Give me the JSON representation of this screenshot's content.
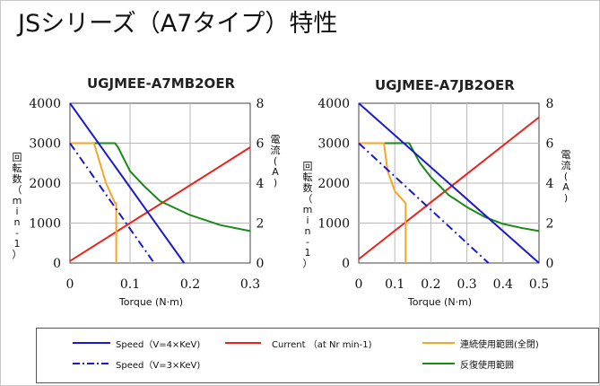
{
  "page": {
    "title": "JSシリーズ（A7タイプ）特性"
  },
  "chart_data": [
    {
      "type": "line",
      "title": "UGJMEE-A7MB2OER",
      "xlabel": "Torque (N·m)",
      "ylabel_left": [
        "回",
        "転",
        "数",
        "（",
        "m",
        "i",
        "n",
        "-",
        "1",
        "）"
      ],
      "ylabel_right": [
        "電",
        "流",
        "(",
        "A",
        ")"
      ],
      "xlim": [
        0,
        0.3
      ],
      "ylim_left": [
        0,
        4000
      ],
      "ylim_right": [
        0,
        8
      ],
      "x_ticks": [
        "0",
        "0.1",
        "0.2",
        "0.3"
      ],
      "y_ticks_left": [
        "0",
        "1000",
        "2000",
        "3000",
        "4000"
      ],
      "y_ticks_right": [
        "0",
        "2",
        "4",
        "6",
        "8"
      ],
      "grid": true,
      "series": [
        {
          "name": "Speed (V=4×KeV)",
          "color": "#1a1acc",
          "dash": "solid",
          "axis": "left",
          "x": [
            0,
            0.19
          ],
          "y": [
            4000,
            0
          ]
        },
        {
          "name": "Speed (V=3×KeV)",
          "color": "#1a1acc",
          "dash": "dashdot",
          "axis": "left",
          "x": [
            0,
            0.14
          ],
          "y": [
            3000,
            0
          ]
        },
        {
          "name": "Current (at Nr min-1)",
          "color": "#e8241c",
          "dash": "solid",
          "axis": "right",
          "x": [
            0,
            0.3
          ],
          "y": [
            0.1,
            5.8
          ]
        },
        {
          "name": "連続使用範囲(全閉)",
          "color": "#f5a623",
          "dash": "solid",
          "axis": "left",
          "x": [
            0,
            0.04,
            0.05,
            0.06,
            0.075,
            0.077,
            0.077
          ],
          "y": [
            3000,
            3000,
            2500,
            2000,
            1500,
            1500,
            0
          ]
        },
        {
          "name": "反復使用範囲",
          "color": "#1a8a1a",
          "dash": "solid",
          "axis": "left",
          "x": [
            0,
            0.075,
            0.08,
            0.1,
            0.125,
            0.15,
            0.2,
            0.25,
            0.3
          ],
          "y": [
            3000,
            3000,
            2900,
            2300,
            1900,
            1550,
            1200,
            950,
            800
          ]
        }
      ]
    },
    {
      "type": "line",
      "title": "UGJMEE-A7JB2OER",
      "xlabel": "Torque (N·m)",
      "ylabel_left": [
        "回",
        "転",
        "数",
        "（",
        "m",
        "i",
        "n",
        "-",
        "1",
        "）"
      ],
      "ylabel_right": [
        "電",
        "流",
        "(",
        "A",
        ")"
      ],
      "xlim": [
        0,
        0.5
      ],
      "ylim_left": [
        0,
        4000
      ],
      "ylim_right": [
        0,
        8
      ],
      "x_ticks": [
        "0",
        "0.1",
        "0.2",
        "0.3",
        "0.4",
        "0.5"
      ],
      "y_ticks_left": [
        "0",
        "1000",
        "2000",
        "3000",
        "4000"
      ],
      "y_ticks_right": [
        "0",
        "2",
        "4",
        "6",
        "8"
      ],
      "grid": true,
      "series": [
        {
          "name": "Speed (V=4×KeV)",
          "color": "#1a1acc",
          "dash": "solid",
          "axis": "left",
          "x": [
            0,
            0.5
          ],
          "y": [
            4000,
            0
          ]
        },
        {
          "name": "Speed (V=3×KeV)",
          "color": "#1a1acc",
          "dash": "dashdot",
          "axis": "left",
          "x": [
            0,
            0.36
          ],
          "y": [
            3000,
            0
          ]
        },
        {
          "name": "Current (at Nr min-1)",
          "color": "#e8241c",
          "dash": "solid",
          "axis": "right",
          "x": [
            0,
            0.5
          ],
          "y": [
            0.2,
            7.3
          ]
        },
        {
          "name": "連続使用範囲(全閉)",
          "color": "#f5a623",
          "dash": "solid",
          "axis": "left",
          "x": [
            0,
            0.07,
            0.08,
            0.1,
            0.13,
            0.13
          ],
          "y": [
            3000,
            3000,
            2300,
            1800,
            1500,
            0
          ]
        },
        {
          "name": "反復使用範囲",
          "color": "#1a8a1a",
          "dash": "solid",
          "axis": "left",
          "x": [
            0,
            0.14,
            0.17,
            0.2,
            0.25,
            0.3,
            0.35,
            0.4,
            0.45,
            0.5
          ],
          "y": [
            3000,
            3000,
            2500,
            2150,
            1700,
            1400,
            1150,
            980,
            880,
            800
          ]
        }
      ]
    }
  ],
  "legend": {
    "speed4": "Speed（V=4×KeV)",
    "speed3": "Speed（V=3×KeV)",
    "current": "Current （at Nr min-1)",
    "continuous": "連続使用範囲(全閉)",
    "repeat": "反復使用範囲"
  }
}
